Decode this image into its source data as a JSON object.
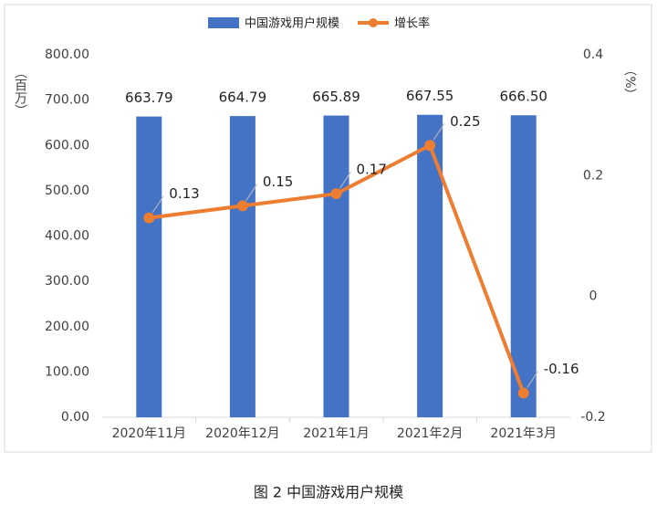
{
  "chart_data": {
    "type": "bar-line",
    "caption": "图 2 中国游戏用户规模",
    "y_label": "（百万）",
    "y2_label": "（%）",
    "categories": [
      "2020年11月",
      "2020年12月",
      "2021年1月",
      "2021年2月",
      "2021年3月"
    ],
    "series": [
      {
        "name": "中国游戏用户规模",
        "type": "bar",
        "color": "#4472c4",
        "values": [
          663.79,
          664.79,
          665.89,
          667.55,
          666.5
        ],
        "value_labels": [
          "663.79",
          "664.79",
          "665.89",
          "667.55",
          "666.50"
        ]
      },
      {
        "name": "增长率",
        "type": "line",
        "axis": "y2",
        "color": "#ed7d31",
        "values": [
          0.13,
          0.15,
          0.17,
          0.25,
          -0.16
        ]
      }
    ],
    "ylim": [
      0,
      800
    ],
    "yticks": [
      {
        "value": 0,
        "label": "0.00"
      },
      {
        "value": 100,
        "label": "100.00"
      },
      {
        "value": 200,
        "label": "200.00"
      },
      {
        "value": 300,
        "label": "300.00"
      },
      {
        "value": 400,
        "label": "400.00"
      },
      {
        "value": 500,
        "label": "500.00"
      },
      {
        "value": 600,
        "label": "600.00"
      },
      {
        "value": 700,
        "label": "700.00"
      },
      {
        "value": 800,
        "label": "800.00"
      }
    ],
    "y2lim": [
      -0.2,
      0.4
    ],
    "y2ticks": [
      -0.2,
      0,
      0.2,
      0.4
    ],
    "legend": "top"
  }
}
